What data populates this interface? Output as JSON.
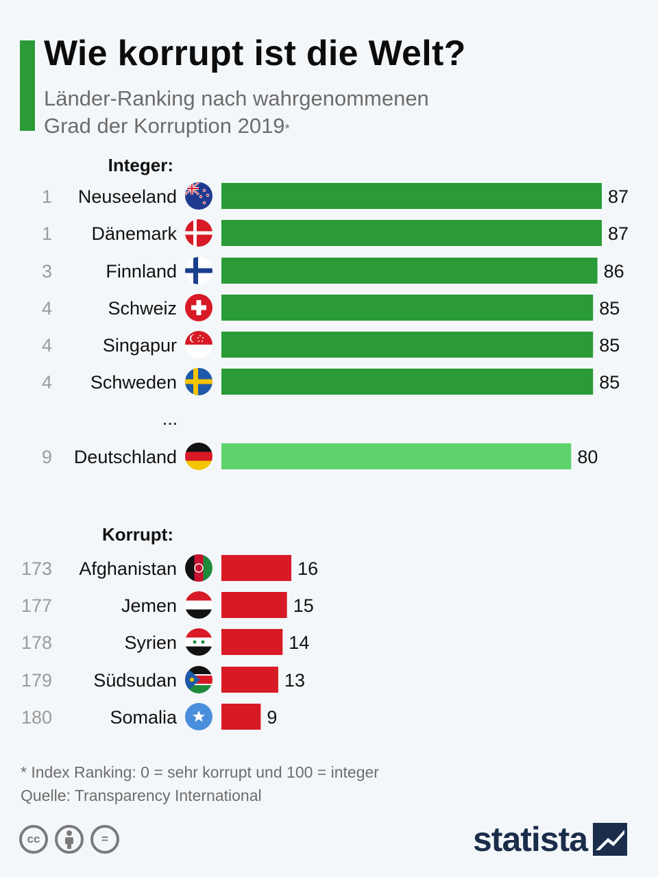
{
  "header": {
    "title": "Wie korrupt ist die Welt?",
    "subtitle_line1": "Länder-Ranking nach wahrgenommenen",
    "subtitle_line2": "Grad der Korruption 2019",
    "subtitle_mark": "*"
  },
  "chart_data": {
    "type": "bar",
    "title": "Wie korrupt ist die Welt?",
    "subtitle": "Länder-Ranking nach wahrgenommenen Grad der Korruption 2019*",
    "orientation": "horizontal",
    "xlim": [
      0,
      87
    ],
    "groups": [
      {
        "label": "Integer:",
        "color": "#2a9b37",
        "items": [
          {
            "rank": "1",
            "country": "Neuseeland",
            "value": 87,
            "flag": "new-zealand-flag-icon"
          },
          {
            "rank": "1",
            "country": "Dänemark",
            "value": 87,
            "flag": "denmark-flag-icon"
          },
          {
            "rank": "3",
            "country": "Finnland",
            "value": 86,
            "flag": "finland-flag-icon"
          },
          {
            "rank": "4",
            "country": "Schweiz",
            "value": 85,
            "flag": "switzerland-flag-icon"
          },
          {
            "rank": "4",
            "country": "Singapur",
            "value": 85,
            "flag": "singapore-flag-icon"
          },
          {
            "rank": "4",
            "country": "Schweden",
            "value": 85,
            "flag": "sweden-flag-icon"
          }
        ],
        "ellipsis": "...",
        "highlight": {
          "rank": "9",
          "country": "Deutschland",
          "value": 80,
          "flag": "germany-flag-icon",
          "color": "#5fd36b"
        }
      },
      {
        "label": "Korrupt:",
        "color": "#d71a26",
        "items": [
          {
            "rank": "173",
            "country": "Afghanistan",
            "value": 16,
            "flag": "afghanistan-flag-icon"
          },
          {
            "rank": "177",
            "country": "Jemen",
            "value": 15,
            "flag": "yemen-flag-icon"
          },
          {
            "rank": "178",
            "country": "Syrien",
            "value": 14,
            "flag": "syria-flag-icon"
          },
          {
            "rank": "179",
            "country": "Südsudan",
            "value": 13,
            "flag": "south-sudan-flag-icon"
          },
          {
            "rank": "180",
            "country": "Somalia",
            "value": 9,
            "flag": "somalia-flag-icon"
          }
        ]
      }
    ]
  },
  "footer": {
    "note": "* Index Ranking: 0 = sehr korrupt und 100 = integer",
    "source": "Quelle: Transparency International",
    "license_icons": [
      "cc-icon",
      "attribution-icon",
      "no-derivatives-icon"
    ],
    "license_cc": "cc",
    "license_nd": "=",
    "brand": "statista"
  }
}
